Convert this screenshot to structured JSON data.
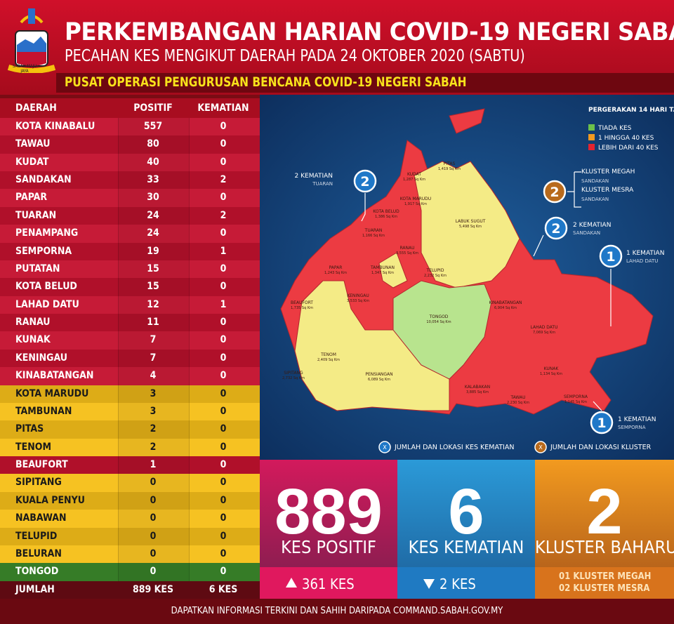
{
  "header": {
    "title": "PERKEMBANGAN HARIAN COVID-19 NEGERI SABAH",
    "subtitle": "PECAHAN KES MENGIKUT DAERAH PADA 24 OKTOBER 2020 (SABTU)",
    "agency": "PUSAT OPERASI PENGURUSAN BENCANA COVID-19 NEGERI SABAH",
    "motto": "SABAH MAJU JAYA"
  },
  "table": {
    "columns": [
      "DAERAH",
      "POSITIF",
      "KEMATIAN"
    ],
    "zones": {
      "red": "#c4122f",
      "yellow": "#f6c01a",
      "green": "#3d8b2c"
    },
    "rows": [
      {
        "cells": [
          "KOTA KINABALU",
          557,
          0
        ],
        "zone": "red"
      },
      {
        "cells": [
          "TAWAU",
          80,
          0
        ],
        "zone": "red"
      },
      {
        "cells": [
          "KUDAT",
          40,
          0
        ],
        "zone": "red"
      },
      {
        "cells": [
          "SANDAKAN",
          33,
          2
        ],
        "zone": "red"
      },
      {
        "cells": [
          "PAPAR",
          30,
          0
        ],
        "zone": "red"
      },
      {
        "cells": [
          "TUARAN",
          24,
          2
        ],
        "zone": "red"
      },
      {
        "cells": [
          "PENAMPANG",
          24,
          0
        ],
        "zone": "red"
      },
      {
        "cells": [
          "SEMPORNA",
          19,
          1
        ],
        "zone": "red"
      },
      {
        "cells": [
          "PUTATAN",
          15,
          0
        ],
        "zone": "red"
      },
      {
        "cells": [
          "KOTA BELUD",
          15,
          0
        ],
        "zone": "red"
      },
      {
        "cells": [
          "LAHAD DATU",
          12,
          1
        ],
        "zone": "red"
      },
      {
        "cells": [
          "RANAU",
          11,
          0
        ],
        "zone": "red"
      },
      {
        "cells": [
          "KUNAK",
          7,
          0
        ],
        "zone": "red"
      },
      {
        "cells": [
          "KENINGAU",
          7,
          0
        ],
        "zone": "red"
      },
      {
        "cells": [
          "KINABATANGAN",
          4,
          0
        ],
        "zone": "red"
      },
      {
        "cells": [
          "KOTA MARUDU",
          3,
          0
        ],
        "zone": "yellow"
      },
      {
        "cells": [
          "TAMBUNAN",
          3,
          0
        ],
        "zone": "yellow"
      },
      {
        "cells": [
          "PITAS",
          2,
          0
        ],
        "zone": "yellow"
      },
      {
        "cells": [
          "TENOM",
          2,
          0
        ],
        "zone": "yellow"
      },
      {
        "cells": [
          "BEAUFORT",
          1,
          0
        ],
        "zone": "red"
      },
      {
        "cells": [
          "SIPITANG",
          0,
          0
        ],
        "zone": "yellow"
      },
      {
        "cells": [
          "KUALA PENYU",
          0,
          0
        ],
        "zone": "yellow"
      },
      {
        "cells": [
          "NABAWAN",
          0,
          0
        ],
        "zone": "yellow"
      },
      {
        "cells": [
          "TELUPID",
          0,
          0
        ],
        "zone": "yellow"
      },
      {
        "cells": [
          "BELURAN",
          0,
          0
        ],
        "zone": "yellow"
      },
      {
        "cells": [
          "TONGOD",
          0,
          0
        ],
        "zone": "green"
      }
    ],
    "total": [
      "JUMLAH",
      "889 KES",
      "6 KES"
    ]
  },
  "map": {
    "legend": {
      "title": "PERGERAKAN 14 HARI TABURAN KES",
      "items": [
        {
          "label": "TIADA KES",
          "color": "#6cc04a"
        },
        {
          "label": "1 HINGGA 40 KES",
          "color": "#f29a1f"
        },
        {
          "label": "LEBIH DARI 40 KES",
          "color": "#e3232f"
        }
      ]
    },
    "callouts": [
      {
        "count": "2",
        "kind": "death",
        "lines": [
          "2 KEMATIAN",
          "TUARAN"
        ]
      },
      {
        "count": "2",
        "kind": "cluster",
        "lines": [
          "KLUSTER MEGAH",
          "SANDAKAN",
          "KLUSTER MESRA",
          "SANDAKAN"
        ]
      },
      {
        "count": "2",
        "kind": "death",
        "lines": [
          "2 KEMATIAN",
          "SANDAKAN"
        ]
      },
      {
        "count": "1",
        "kind": "death",
        "lines": [
          "1 KEMATIAN",
          "LAHAD DATU"
        ]
      },
      {
        "count": "1",
        "kind": "death",
        "lines": [
          "1 KEMATIAN",
          "SEMPORNA"
        ]
      }
    ],
    "districts": [
      {
        "name": "KUDAT",
        "area": "1,287 Sq Km"
      },
      {
        "name": "PITAS",
        "area": "1,419 Sq Km"
      },
      {
        "name": "KOTA MARUDU",
        "area": "1,917 Sq Km"
      },
      {
        "name": "KOTA BELUD",
        "area": "1,386 Sq Km"
      },
      {
        "name": "TUARAN",
        "area": "1,166 Sq Km"
      },
      {
        "name": "LABUK SUGUT",
        "area": "5,498 Sq Km"
      },
      {
        "name": "RANAU",
        "area": "3,555 Sq Km"
      },
      {
        "name": "TAMBUNAN",
        "area": "1,347 Sq Km"
      },
      {
        "name": "TELUPID",
        "area": "2,232 Sq Km"
      },
      {
        "name": "PAPAR",
        "area": "1,243 Sq Km"
      },
      {
        "name": "BEAUFORT",
        "area": "1,735 Sq Km"
      },
      {
        "name": "KENINGAU",
        "area": "3,533 Sq Km"
      },
      {
        "name": "TONGOD",
        "area": "10,054 Sq Km"
      },
      {
        "name": "KINABATANGAN",
        "area": "6,904 Sq Km"
      },
      {
        "name": "LAHAD DATU",
        "area": "7,069 Sq Km"
      },
      {
        "name": "TENOM",
        "area": "2,409 Sq Km"
      },
      {
        "name": "SIPITANG",
        "area": "2,732 Sq Km"
      },
      {
        "name": "PENSIANGAN",
        "area": "6,089 Sq Km"
      },
      {
        "name": "KALABAKAN",
        "area": "3,885 Sq Km"
      },
      {
        "name": "KUNAK",
        "area": "1,134 Sq Km"
      },
      {
        "name": "TAWAU",
        "area": "2,230 Sq Km"
      },
      {
        "name": "SEMPORNA",
        "area": "1,145 Sq Km"
      }
    ],
    "keys": [
      {
        "mark": "X",
        "label": "JUMLAH DAN LOKASI KES KEMATIAN",
        "kind": "death"
      },
      {
        "mark": "X",
        "label": "JUMLAH DAN LOKASI KLUSTER",
        "kind": "cluster"
      }
    ]
  },
  "stats": [
    {
      "value": 889,
      "label": "KES POSITIF",
      "change": "361 KES",
      "direction": "up"
    },
    {
      "value": 6,
      "label": "KES KEMATIAN",
      "change": "2 KES",
      "direction": "down"
    },
    {
      "value": 2,
      "label": "KLUSTER BAHARU",
      "notes": [
        "01 KLUSTER MEGAH",
        "02 KLUSTER MESRA"
      ]
    }
  ],
  "footer": "DAPATKAN INFORMASI TERKINI DAN SAHIH DARIPADA COMMAND.SABAH.GOV.MY"
}
